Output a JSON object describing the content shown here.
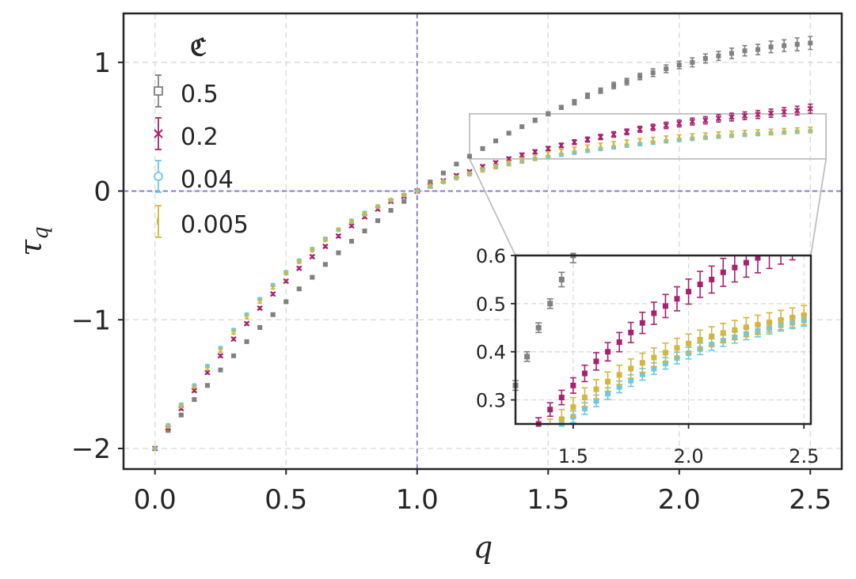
{
  "chart_data": {
    "type": "scatter",
    "title": "",
    "xlabel": "q",
    "ylabel": "τ_q",
    "ylabel_main": "τ",
    "ylabel_sub": "q",
    "xlim": [
      -0.12,
      2.62
    ],
    "ylim": [
      -2.16,
      1.38
    ],
    "xticks": [
      0.0,
      0.5,
      1.0,
      1.5,
      2.0,
      2.5
    ],
    "xtick_labels": [
      "0.0",
      "0.5",
      "1.0",
      "1.5",
      "2.0",
      "2.5"
    ],
    "yticks": [
      -2,
      -1,
      0,
      1
    ],
    "ytick_labels": [
      "−2",
      "−1",
      "0",
      "1"
    ],
    "grid": true,
    "reference_lines": {
      "x": 1.0,
      "y": 0.0
    },
    "legend": {
      "title": "ℭ",
      "placement": "top-left"
    },
    "x": [
      0.0,
      0.05,
      0.1,
      0.15,
      0.2,
      0.25,
      0.3,
      0.35,
      0.4,
      0.45,
      0.5,
      0.55,
      0.6,
      0.65,
      0.7,
      0.75,
      0.8,
      0.85,
      0.9,
      0.95,
      1.0,
      1.05,
      1.1,
      1.15,
      1.2,
      1.25,
      1.3,
      1.35,
      1.4,
      1.45,
      1.5,
      1.55,
      1.6,
      1.65,
      1.7,
      1.75,
      1.8,
      1.85,
      1.9,
      1.95,
      2.0,
      2.05,
      2.1,
      2.15,
      2.2,
      2.25,
      2.3,
      2.35,
      2.4,
      2.45,
      2.5
    ],
    "series": [
      {
        "name": "0.5",
        "color": "#808080",
        "marker": "square",
        "values": [
          -2.0,
          -1.86,
          -1.74,
          -1.62,
          -1.51,
          -1.39,
          -1.28,
          -1.17,
          -1.06,
          -0.96,
          -0.86,
          -0.76,
          -0.67,
          -0.57,
          -0.48,
          -0.39,
          -0.31,
          -0.23,
          -0.15,
          -0.08,
          0.0,
          0.07,
          0.14,
          0.21,
          0.27,
          0.33,
          0.39,
          0.45,
          0.5,
          0.55,
          0.6,
          0.65,
          0.69,
          0.74,
          0.78,
          0.82,
          0.85,
          0.89,
          0.92,
          0.95,
          0.98,
          1.0,
          1.03,
          1.05,
          1.07,
          1.09,
          1.1,
          1.12,
          1.13,
          1.14,
          1.15
        ],
        "errors": [
          0,
          0.01,
          0.01,
          0.01,
          0.01,
          0.01,
          0.01,
          0.01,
          0.01,
          0.01,
          0.01,
          0.01,
          0.01,
          0.01,
          0.01,
          0.01,
          0.01,
          0.01,
          0.01,
          0.01,
          0,
          0.01,
          0.01,
          0.01,
          0.01,
          0.01,
          0.01,
          0.01,
          0.01,
          0.015,
          0.015,
          0.015,
          0.02,
          0.02,
          0.02,
          0.025,
          0.025,
          0.025,
          0.03,
          0.03,
          0.03,
          0.035,
          0.035,
          0.035,
          0.04,
          0.04,
          0.04,
          0.045,
          0.045,
          0.05,
          0.05
        ]
      },
      {
        "name": "0.2",
        "color": "#a7226e",
        "marker": "x",
        "values": [
          -2.0,
          -1.84,
          -1.69,
          -1.55,
          -1.41,
          -1.28,
          -1.15,
          -1.03,
          -0.91,
          -0.8,
          -0.7,
          -0.6,
          -0.51,
          -0.43,
          -0.35,
          -0.27,
          -0.2,
          -0.14,
          -0.08,
          -0.04,
          0.0,
          0.04,
          0.08,
          0.12,
          0.15,
          0.19,
          0.22,
          0.25,
          0.28,
          0.305,
          0.33,
          0.355,
          0.38,
          0.4,
          0.42,
          0.44,
          0.46,
          0.48,
          0.495,
          0.51,
          0.525,
          0.54,
          0.55,
          0.565,
          0.575,
          0.585,
          0.595,
          0.605,
          0.615,
          0.625,
          0.64
        ],
        "errors": [
          0,
          0.01,
          0.01,
          0.01,
          0.01,
          0.01,
          0.01,
          0.01,
          0.01,
          0.01,
          0.01,
          0.01,
          0.01,
          0.01,
          0.01,
          0.01,
          0.01,
          0.01,
          0.01,
          0.01,
          0,
          0.01,
          0.01,
          0.01,
          0.01,
          0.012,
          0.012,
          0.013,
          0.014,
          0.015,
          0.016,
          0.017,
          0.018,
          0.019,
          0.02,
          0.021,
          0.022,
          0.023,
          0.024,
          0.025,
          0.026,
          0.027,
          0.028,
          0.029,
          0.03,
          0.03,
          0.031,
          0.032,
          0.033,
          0.034,
          0.035
        ]
      },
      {
        "name": "0.04",
        "color": "#6cc8e4",
        "marker": "circle",
        "values": [
          -2.0,
          -1.82,
          -1.66,
          -1.51,
          -1.36,
          -1.22,
          -1.08,
          -0.96,
          -0.84,
          -0.73,
          -0.63,
          -0.54,
          -0.45,
          -0.37,
          -0.3,
          -0.23,
          -0.17,
          -0.12,
          -0.07,
          -0.03,
          0.0,
          0.035,
          0.07,
          0.1,
          0.13,
          0.16,
          0.185,
          0.21,
          0.23,
          0.25,
          0.265,
          0.282,
          0.298,
          0.313,
          0.327,
          0.34,
          0.353,
          0.365,
          0.376,
          0.387,
          0.397,
          0.406,
          0.415,
          0.423,
          0.43,
          0.437,
          0.443,
          0.449,
          0.455,
          0.46,
          0.465
        ],
        "errors": [
          0,
          0.01,
          0.01,
          0.01,
          0.01,
          0.01,
          0.01,
          0.01,
          0.01,
          0.01,
          0.01,
          0.01,
          0.01,
          0.01,
          0.01,
          0.01,
          0.01,
          0.01,
          0.01,
          0.01,
          0,
          0.01,
          0.01,
          0.01,
          0.01,
          0.01,
          0.01,
          0.011,
          0.011,
          0.012,
          0.012,
          0.012,
          0.012,
          0.012,
          0.012,
          0.012,
          0.012,
          0.012,
          0.012,
          0.012,
          0.012,
          0.012,
          0.012,
          0.012,
          0.012,
          0.012,
          0.012,
          0.012,
          0.012,
          0.012,
          0.012
        ]
      },
      {
        "name": "0.005",
        "color": "#d2b640",
        "marker": "line",
        "values": [
          -2.0,
          -1.83,
          -1.67,
          -1.52,
          -1.38,
          -1.24,
          -1.1,
          -0.98,
          -0.86,
          -0.75,
          -0.64,
          -0.55,
          -0.46,
          -0.38,
          -0.3,
          -0.24,
          -0.18,
          -0.12,
          -0.07,
          -0.03,
          0.0,
          0.04,
          0.075,
          0.105,
          0.135,
          0.165,
          0.19,
          0.215,
          0.24,
          0.26,
          0.285,
          0.305,
          0.322,
          0.338,
          0.352,
          0.365,
          0.377,
          0.388,
          0.398,
          0.408,
          0.417,
          0.425,
          0.432,
          0.439,
          0.445,
          0.451,
          0.456,
          0.461,
          0.466,
          0.471,
          0.476
        ],
        "errors": [
          0,
          0.01,
          0.01,
          0.01,
          0.01,
          0.01,
          0.01,
          0.01,
          0.01,
          0.01,
          0.01,
          0.01,
          0.01,
          0.01,
          0.01,
          0.01,
          0.01,
          0.01,
          0.01,
          0.01,
          0,
          0.01,
          0.01,
          0.01,
          0.012,
          0.014,
          0.016,
          0.018,
          0.02,
          0.02,
          0.02,
          0.02,
          0.02,
          0.02,
          0.02,
          0.02,
          0.02,
          0.02,
          0.02,
          0.02,
          0.02,
          0.02,
          0.02,
          0.02,
          0.02,
          0.02,
          0.02,
          0.02,
          0.02,
          0.02,
          0.02
        ]
      }
    ],
    "inset": {
      "xlim": [
        1.25,
        2.53
      ],
      "ylim": [
        0.25,
        0.6
      ],
      "xticks": [
        1.5,
        2.0,
        2.5
      ],
      "xtick_labels": [
        "1.5",
        "2.0",
        "2.5"
      ],
      "yticks": [
        0.3,
        0.4,
        0.5,
        0.6
      ],
      "ytick_labels": [
        "0.3",
        "0.4",
        "0.5",
        "0.6"
      ],
      "zoom_region": {
        "x": [
          1.2,
          2.56
        ],
        "y": [
          0.25,
          0.6
        ]
      }
    }
  }
}
